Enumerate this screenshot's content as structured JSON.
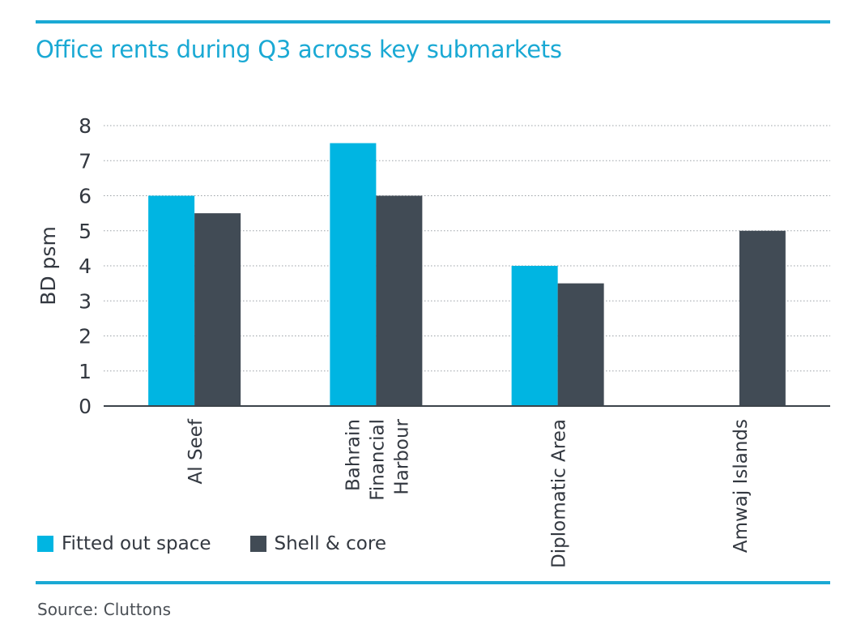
{
  "title": "Office rents during Q3 across key submarkets",
  "source": "Source: Cluttons",
  "colors": {
    "accent": "#1aa9d4",
    "fitted": "#00b5e2",
    "shell": "#414b55"
  },
  "chart_data": {
    "type": "bar",
    "categories": [
      [
        "Al Seef"
      ],
      [
        "Bahrain",
        "Financial",
        "Harbour"
      ],
      [
        "Diplomatic Area"
      ],
      [
        "Amwaj Islands"
      ]
    ],
    "series": [
      {
        "name": "Fitted out space",
        "color": "#00b5e2",
        "values": [
          6.0,
          7.5,
          4.0,
          null
        ]
      },
      {
        "name": "Shell & core",
        "color": "#414b55",
        "values": [
          5.5,
          6.0,
          3.5,
          5.0
        ]
      }
    ],
    "title": "Office rents during Q3 across key submarkets",
    "xlabel": "",
    "ylabel": "BD psm",
    "ylim": [
      0,
      8
    ],
    "yticks": [
      0,
      1,
      2,
      3,
      4,
      5,
      6,
      7,
      8
    ],
    "grid": true,
    "legend_position": "bottom-left"
  }
}
